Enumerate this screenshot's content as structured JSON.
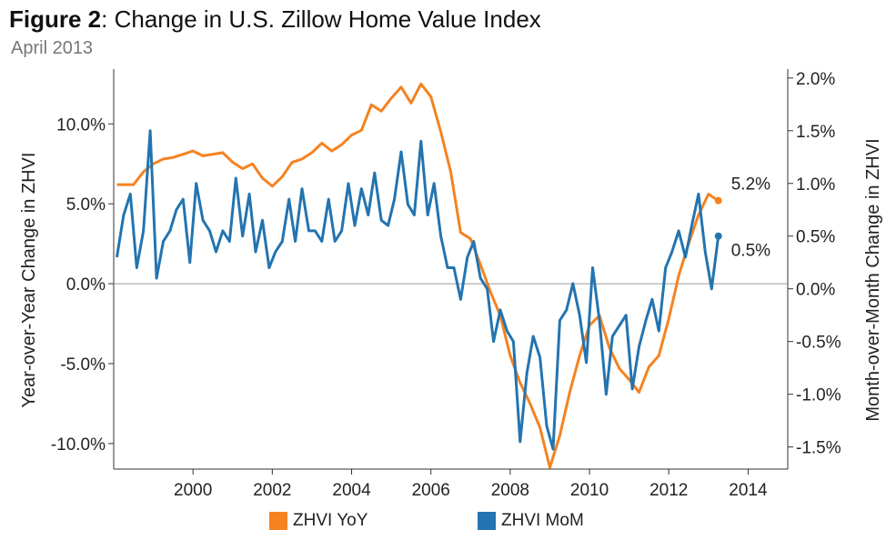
{
  "figure": {
    "title_bold": "Figure 2",
    "title_rest": ": Change in U.S. Zillow Home Value Index",
    "subtitle": "April 2013"
  },
  "colors": {
    "yoy": "#F58220",
    "mom": "#2374B0",
    "axis": "#333333",
    "zero": "#9a9a9a"
  },
  "chart_data": {
    "type": "line",
    "title": "Figure 2: Change in U.S. Zillow Home Value Index",
    "subtitle": "April 2013",
    "ylabel_left": "Year-over-Year Change in ZHVI",
    "ylabel_right": "Month-over-Month Change in ZHVI",
    "x_ticks": [
      "2000",
      "2002",
      "2004",
      "2006",
      "2008",
      "2010",
      "2012",
      "2014"
    ],
    "y_left_ticks": [
      "10.0%",
      "5.0%",
      "0.0%",
      "-5.0%",
      "-10.0%"
    ],
    "y_right_ticks": [
      "2.0%",
      "1.5%",
      "1.0%",
      "0.5%",
      "0.0%",
      "-0.5%",
      "-1.0%",
      "-1.5%"
    ],
    "xlim": [
      1998.0,
      2015.0
    ],
    "ylim_left": [
      -11.6,
      13.2
    ],
    "ylim_right": [
      -1.71,
      2.05
    ],
    "grid": false,
    "legend_position": "bottom",
    "series": [
      {
        "name": "ZHVI YoY",
        "axis": "left",
        "end_label": "5.2%",
        "points": [
          [
            1998.08,
            6.2
          ],
          [
            1998.5,
            6.2
          ],
          [
            1998.75,
            7.0
          ],
          [
            1999.0,
            7.5
          ],
          [
            1999.25,
            7.8
          ],
          [
            1999.5,
            7.9
          ],
          [
            1999.75,
            8.1
          ],
          [
            2000.0,
            8.3
          ],
          [
            2000.25,
            8.0
          ],
          [
            2000.5,
            8.1
          ],
          [
            2000.75,
            8.2
          ],
          [
            2001.0,
            7.6
          ],
          [
            2001.25,
            7.2
          ],
          [
            2001.5,
            7.5
          ],
          [
            2001.75,
            6.6
          ],
          [
            2002.0,
            6.1
          ],
          [
            2002.25,
            6.7
          ],
          [
            2002.5,
            7.6
          ],
          [
            2002.75,
            7.8
          ],
          [
            2003.0,
            8.2
          ],
          [
            2003.25,
            8.8
          ],
          [
            2003.5,
            8.3
          ],
          [
            2003.75,
            8.7
          ],
          [
            2004.0,
            9.3
          ],
          [
            2004.25,
            9.6
          ],
          [
            2004.5,
            11.2
          ],
          [
            2004.75,
            10.8
          ],
          [
            2005.0,
            11.6
          ],
          [
            2005.25,
            12.3
          ],
          [
            2005.5,
            11.3
          ],
          [
            2005.75,
            12.5
          ],
          [
            2006.0,
            11.7
          ],
          [
            2006.25,
            9.5
          ],
          [
            2006.5,
            7.0
          ],
          [
            2006.75,
            3.2
          ],
          [
            2007.0,
            2.8
          ],
          [
            2007.25,
            1.2
          ],
          [
            2007.5,
            -0.5
          ],
          [
            2007.75,
            -2.0
          ],
          [
            2008.0,
            -4.5
          ],
          [
            2008.25,
            -6.2
          ],
          [
            2008.5,
            -7.5
          ],
          [
            2008.75,
            -9.0
          ],
          [
            2009.0,
            -11.5
          ],
          [
            2009.25,
            -9.5
          ],
          [
            2009.5,
            -6.8
          ],
          [
            2009.75,
            -4.5
          ],
          [
            2010.0,
            -2.6
          ],
          [
            2010.25,
            -2.0
          ],
          [
            2010.5,
            -4.0
          ],
          [
            2010.75,
            -5.3
          ],
          [
            2011.0,
            -6.0
          ],
          [
            2011.25,
            -6.8
          ],
          [
            2011.5,
            -5.2
          ],
          [
            2011.75,
            -4.5
          ],
          [
            2012.0,
            -2.2
          ],
          [
            2012.25,
            0.5
          ],
          [
            2012.5,
            2.5
          ],
          [
            2012.75,
            4.3
          ],
          [
            2013.0,
            5.6
          ],
          [
            2013.25,
            5.2
          ]
        ]
      },
      {
        "name": "ZHVI MoM",
        "axis": "right",
        "end_label": "0.5%",
        "points": [
          [
            1998.08,
            0.3
          ],
          [
            1998.25,
            0.7
          ],
          [
            1998.42,
            0.9
          ],
          [
            1998.58,
            0.2
          ],
          [
            1998.75,
            0.55
          ],
          [
            1998.92,
            1.5
          ],
          [
            1999.08,
            0.1
          ],
          [
            1999.25,
            0.45
          ],
          [
            1999.42,
            0.55
          ],
          [
            1999.58,
            0.75
          ],
          [
            1999.75,
            0.85
          ],
          [
            1999.92,
            0.25
          ],
          [
            2000.08,
            1.0
          ],
          [
            2000.25,
            0.65
          ],
          [
            2000.42,
            0.55
          ],
          [
            2000.58,
            0.35
          ],
          [
            2000.75,
            0.55
          ],
          [
            2000.92,
            0.45
          ],
          [
            2001.08,
            1.05
          ],
          [
            2001.25,
            0.5
          ],
          [
            2001.42,
            0.9
          ],
          [
            2001.58,
            0.35
          ],
          [
            2001.75,
            0.65
          ],
          [
            2001.92,
            0.2
          ],
          [
            2002.08,
            0.35
          ],
          [
            2002.25,
            0.45
          ],
          [
            2002.42,
            0.85
          ],
          [
            2002.58,
            0.45
          ],
          [
            2002.75,
            0.95
          ],
          [
            2002.92,
            0.55
          ],
          [
            2003.08,
            0.55
          ],
          [
            2003.25,
            0.45
          ],
          [
            2003.42,
            0.85
          ],
          [
            2003.58,
            0.45
          ],
          [
            2003.75,
            0.55
          ],
          [
            2003.92,
            1.0
          ],
          [
            2004.08,
            0.6
          ],
          [
            2004.25,
            0.95
          ],
          [
            2004.42,
            0.7
          ],
          [
            2004.58,
            1.1
          ],
          [
            2004.75,
            0.65
          ],
          [
            2004.92,
            0.6
          ],
          [
            2005.08,
            0.85
          ],
          [
            2005.25,
            1.3
          ],
          [
            2005.42,
            0.8
          ],
          [
            2005.58,
            0.7
          ],
          [
            2005.75,
            1.4
          ],
          [
            2005.92,
            0.7
          ],
          [
            2006.08,
            1.0
          ],
          [
            2006.25,
            0.5
          ],
          [
            2006.42,
            0.2
          ],
          [
            2006.58,
            0.2
          ],
          [
            2006.75,
            -0.1
          ],
          [
            2006.92,
            0.3
          ],
          [
            2007.08,
            0.45
          ],
          [
            2007.25,
            0.1
          ],
          [
            2007.42,
            0.0
          ],
          [
            2007.58,
            -0.5
          ],
          [
            2007.75,
            -0.2
          ],
          [
            2007.92,
            -0.4
          ],
          [
            2008.08,
            -0.5
          ],
          [
            2008.25,
            -1.45
          ],
          [
            2008.42,
            -0.8
          ],
          [
            2008.58,
            -0.45
          ],
          [
            2008.75,
            -0.65
          ],
          [
            2008.92,
            -1.3
          ],
          [
            2009.08,
            -1.52
          ],
          [
            2009.25,
            -0.3
          ],
          [
            2009.42,
            -0.2
          ],
          [
            2009.58,
            0.05
          ],
          [
            2009.75,
            -0.25
          ],
          [
            2009.92,
            -0.7
          ],
          [
            2010.08,
            0.2
          ],
          [
            2010.25,
            -0.3
          ],
          [
            2010.42,
            -1.0
          ],
          [
            2010.58,
            -0.45
          ],
          [
            2010.75,
            -0.35
          ],
          [
            2010.92,
            -0.25
          ],
          [
            2011.08,
            -0.95
          ],
          [
            2011.25,
            -0.55
          ],
          [
            2011.42,
            -0.3
          ],
          [
            2011.58,
            -0.1
          ],
          [
            2011.75,
            -0.4
          ],
          [
            2011.92,
            0.2
          ],
          [
            2012.08,
            0.35
          ],
          [
            2012.25,
            0.55
          ],
          [
            2012.42,
            0.3
          ],
          [
            2012.58,
            0.6
          ],
          [
            2012.75,
            0.9
          ],
          [
            2012.92,
            0.35
          ],
          [
            2013.08,
            0.0
          ],
          [
            2013.25,
            0.5
          ]
        ]
      }
    ]
  }
}
